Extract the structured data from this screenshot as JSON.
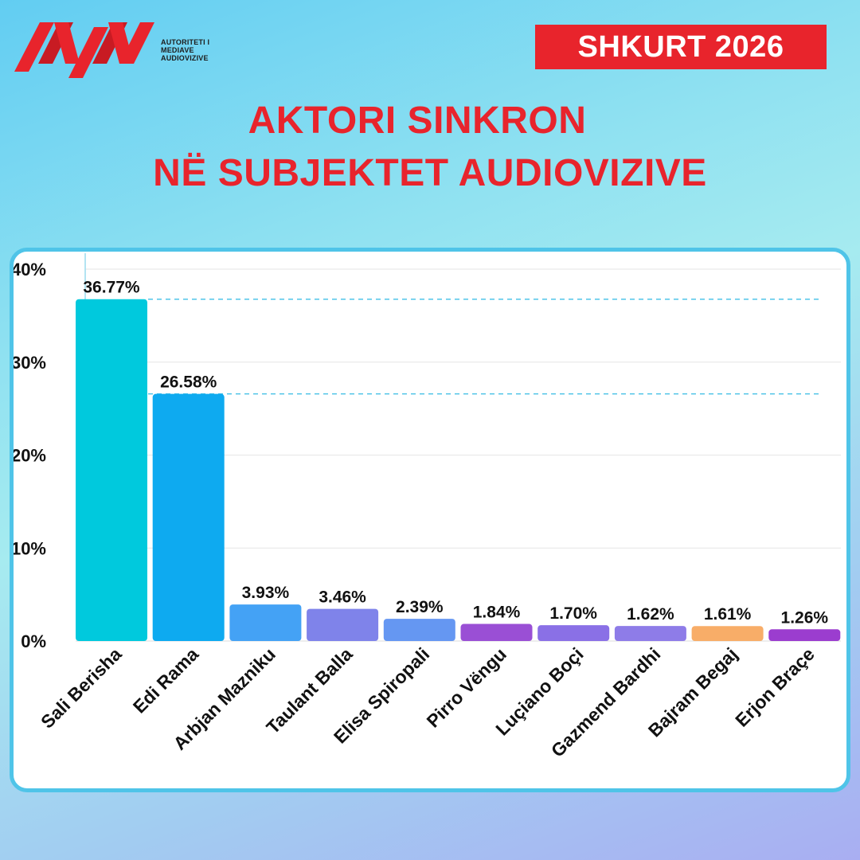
{
  "brand": {
    "logo_icon": "ama-logo-icon",
    "logo_lines": [
      "AUTORITETI I",
      "MEDIAVE",
      "AUDIOVIZIVE"
    ]
  },
  "date_badge": "SHKURT 2026",
  "title": {
    "line1": "AKTORI SINKRON",
    "line2": "NË SUBJEKTET AUDIOVIZIVE"
  },
  "colors": {
    "accent": "#e8242c",
    "card_border": "#4fc4e8",
    "reference_line": "#4fc4e8"
  },
  "chart_data": {
    "type": "bar",
    "title": "",
    "xlabel": "",
    "ylabel": "",
    "ylim": [
      0,
      40
    ],
    "yticks": [
      0,
      10,
      20,
      30,
      40
    ],
    "ytick_labels": [
      "0%",
      "10%",
      "20%",
      "30%",
      "40%"
    ],
    "grid": true,
    "categories": [
      "Sali Berisha",
      "Edi Rama",
      "Arbjan Mazniku",
      "Taulant Balla",
      "Elisa Spiropali",
      "Pirro Vëngu",
      "Luçiano Boçi",
      "Gazmend Bardhi",
      "Bajram Begaj",
      "Erjon Braçe"
    ],
    "values": [
      36.77,
      26.58,
      3.93,
      3.46,
      2.39,
      1.84,
      1.7,
      1.62,
      1.61,
      1.26
    ],
    "value_labels": [
      "36.77%",
      "26.58%",
      "3.93%",
      "3.46%",
      "2.39%",
      "1.84%",
      "1.70%",
      "1.62%",
      "1.61%",
      "1.26%"
    ],
    "bar_colors": [
      "#00c9dd",
      "#0eaaf0",
      "#44a2f5",
      "#7f83ea",
      "#6597f2",
      "#9a4fd5",
      "#8a70e6",
      "#8e7ce8",
      "#f8ad68",
      "#9b3dcf"
    ],
    "reference_lines": [
      36.77,
      26.58
    ]
  }
}
